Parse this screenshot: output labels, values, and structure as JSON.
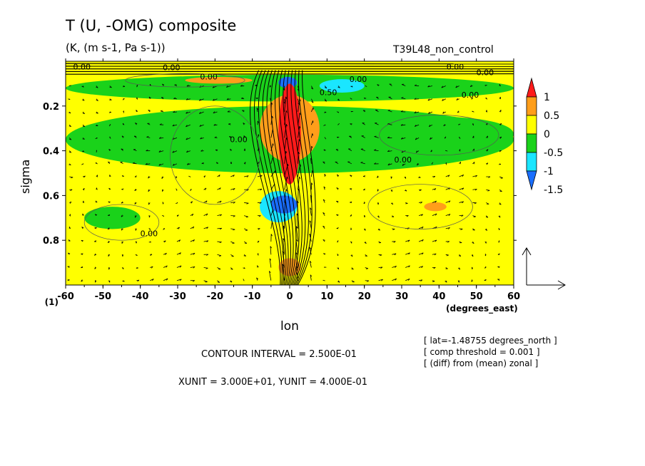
{
  "title": "T (U, -OMG) composite",
  "units_line": "(K, (m s-1, Pa s-1))",
  "run_name": "T39L48_non_control",
  "x_axis_label": "lon",
  "x_axis_units": "(degrees_east)",
  "y_axis_label": "sigma",
  "contour_interval_text": "CONTOUR INTERVAL = 2.500E-01",
  "vector_units_text": "XUNIT = 3.000E+01, YUNIT = 4.000E-01",
  "notes": [
    "[ lat=-1.48755 degrees_north ]",
    "[ comp threshold = 0.001 ]",
    "[ (diff) from (mean) zonal ]"
  ],
  "colors": {
    "red": "#ff1a1a",
    "orange": "#ff9e1a",
    "yellow": "#ffff00",
    "green": "#1ad21a",
    "cyan": "#1ae6ff",
    "blue": "#1a6eff"
  },
  "chart_data": {
    "type": "heatmap",
    "title": "T (U, -OMG) composite",
    "xlabel": "lon",
    "ylabel": "sigma",
    "xlim": [
      -60,
      60
    ],
    "ylim": [
      1.0,
      0.0
    ],
    "x_ticks": [
      -60,
      -50,
      -40,
      -30,
      -20,
      -10,
      0,
      10,
      20,
      30,
      40,
      50,
      60
    ],
    "y_ticks": [
      0.2,
      0.4,
      0.6,
      0.8
    ],
    "y_corner_label": "(1)",
    "colorbar": {
      "labels": [
        "1",
        "0.5",
        "0",
        "-0.5",
        "-1",
        "-1.5"
      ],
      "bins": [
        {
          "range": "> 1",
          "color": "red"
        },
        {
          "range": "0.5 to 1",
          "color": "orange"
        },
        {
          "range": "0 to 0.5",
          "color": "yellow"
        },
        {
          "range": "-0.5 to 0",
          "color": "green"
        },
        {
          "range": "-1 to -0.5",
          "color": "cyan"
        },
        {
          "range": "< -1",
          "color": "blue"
        }
      ]
    },
    "contour_labels": [
      "0.00",
      "0.00",
      "0.00",
      "0.00",
      "0.00",
      "0.00",
      "0.00",
      "0.00",
      "0.00",
      "0.00",
      "0.50"
    ],
    "shaded_regions": [
      {
        "value_class": "red",
        "lon": [
          -3,
          3
        ],
        "sigma": [
          0.1,
          0.55
        ]
      },
      {
        "value_class": "orange",
        "lon": [
          -8,
          8
        ],
        "sigma": [
          0.15,
          0.45
        ]
      },
      {
        "value_class": "orange",
        "lon": [
          -28,
          -10
        ],
        "sigma": [
          0.07,
          0.1
        ]
      },
      {
        "value_class": "orange",
        "lon": [
          -3,
          3
        ],
        "sigma": [
          0.88,
          0.96
        ]
      },
      {
        "value_class": "orange",
        "lon": [
          36,
          42
        ],
        "sigma": [
          0.63,
          0.67
        ]
      },
      {
        "value_class": "cyan",
        "lon": [
          -8,
          2
        ],
        "sigma": [
          0.58,
          0.72
        ]
      },
      {
        "value_class": "blue",
        "lon": [
          -5,
          2
        ],
        "sigma": [
          0.6,
          0.68
        ]
      },
      {
        "value_class": "blue",
        "lon": [
          -3,
          2
        ],
        "sigma": [
          0.07,
          0.12
        ]
      },
      {
        "value_class": "cyan",
        "lon": [
          8,
          20
        ],
        "sigma": [
          0.08,
          0.14
        ]
      },
      {
        "value_class": "green",
        "lon": [
          -60,
          60
        ],
        "sigma": [
          0.06,
          0.18
        ]
      },
      {
        "value_class": "green",
        "lon": [
          -60,
          60
        ],
        "sigma": [
          0.2,
          0.5
        ]
      },
      {
        "value_class": "green",
        "lon": [
          -55,
          -40
        ],
        "sigma": [
          0.65,
          0.75
        ]
      },
      {
        "value_class": "green",
        "lon": [
          25,
          60
        ],
        "sigma": [
          0.25,
          0.4
        ]
      }
    ],
    "vector_reference": {
      "xunit": 30,
      "yunit": 0.4
    }
  }
}
